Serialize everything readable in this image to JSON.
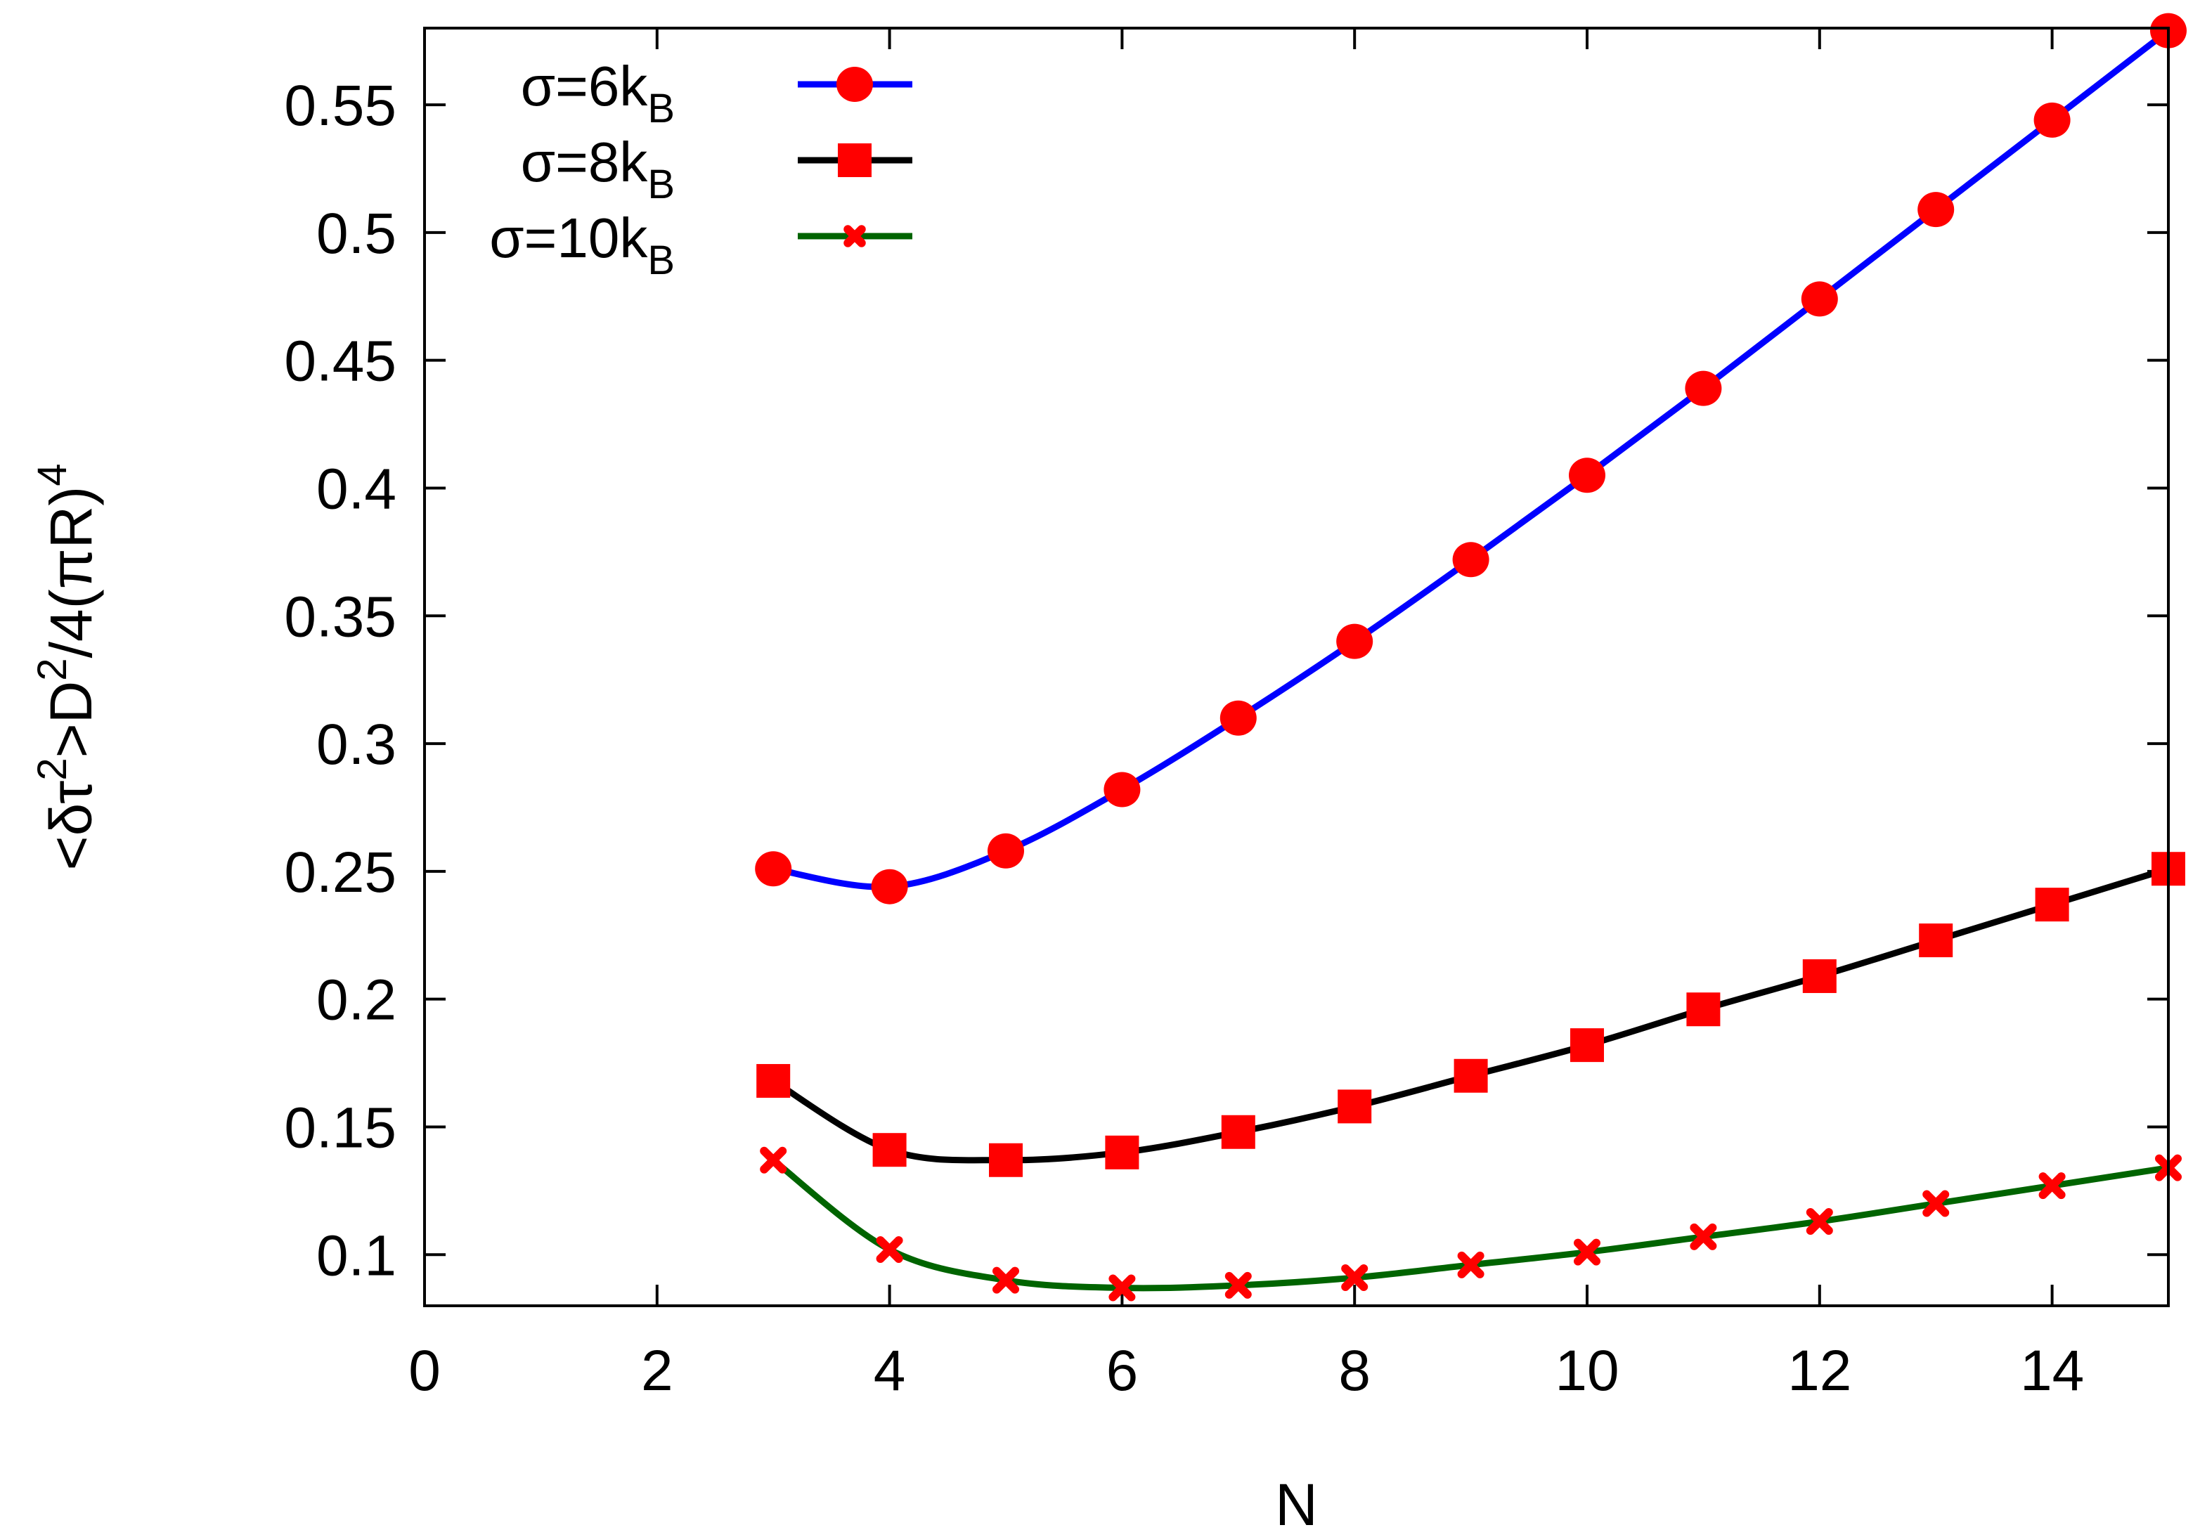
{
  "chart_data": {
    "type": "line",
    "title": "",
    "xlabel": "N",
    "ylabel": {
      "parts": [
        "<δτ",
        "2",
        ">D",
        "2",
        "/4(πR)",
        "4"
      ],
      "text": "<δτ²>D²/4(πR)⁴"
    },
    "xlim": [
      0,
      15
    ],
    "ylim": [
      0.08,
      0.58
    ],
    "xticks": [
      0,
      2,
      4,
      6,
      8,
      10,
      12,
      14
    ],
    "xtick_labels": [
      "0",
      "2",
      "4",
      "6",
      "8",
      "10",
      "12",
      "14"
    ],
    "yticks": [
      0.1,
      0.15,
      0.2,
      0.25,
      0.3,
      0.35,
      0.4,
      0.45,
      0.5,
      0.55
    ],
    "ytick_labels": [
      "0.1",
      "0.15",
      "0.2",
      "0.25",
      "0.3",
      "0.35",
      "0.4",
      "0.45",
      "0.5",
      "0.55"
    ],
    "legend_position": "top-left",
    "x": [
      3,
      4,
      5,
      6,
      7,
      8,
      9,
      10,
      11,
      12,
      13,
      14,
      15
    ],
    "series": [
      {
        "name": "σ=6k_B",
        "label_main": "σ=6k",
        "label_sub": "B",
        "color": "#0000ff",
        "marker": "circle",
        "marker_color": "#ff0000",
        "values": [
          0.251,
          0.244,
          0.258,
          0.282,
          0.31,
          0.34,
          0.372,
          0.405,
          0.439,
          0.474,
          0.509,
          0.544,
          0.579
        ]
      },
      {
        "name": "σ=8k_B",
        "label_main": "σ=8k",
        "label_sub": "B",
        "color": "#000000",
        "marker": "square",
        "marker_color": "#ff0000",
        "values": [
          0.168,
          0.141,
          0.137,
          0.14,
          0.148,
          0.158,
          0.17,
          0.182,
          0.196,
          0.209,
          0.223,
          0.237,
          0.251
        ]
      },
      {
        "name": "σ=10k_B",
        "label_main": "σ=10k",
        "label_sub": "B",
        "color": "#006400",
        "marker": "x",
        "marker_color": "#ff0000",
        "values": [
          0.137,
          0.102,
          0.09,
          0.087,
          0.088,
          0.091,
          0.096,
          0.101,
          0.107,
          0.113,
          0.12,
          0.127,
          0.134
        ]
      }
    ]
  }
}
